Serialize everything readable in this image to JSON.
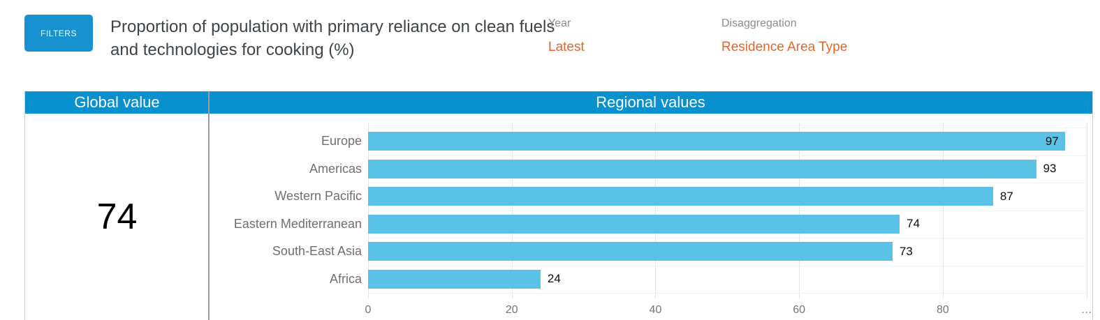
{
  "colors": {
    "header_blue": "#0991cf",
    "button_blue": "#1791cf",
    "bar_blue": "#5bc2e7",
    "accent_orange": "#e2662b"
  },
  "toolbar": {
    "filters_label": "FILTERS",
    "title": "Proportion of population with primary reliance on clean fuels and technologies for cooking (%)",
    "filters": [
      {
        "label": "Year",
        "value": "Latest"
      },
      {
        "label": "Disaggregation",
        "value": "Residence Area Type"
      }
    ]
  },
  "table": {
    "global_header": "Global value",
    "regional_header": "Regional values",
    "global_value": "74"
  },
  "chart_data": {
    "type": "bar",
    "orientation": "horizontal",
    "title": "Regional values",
    "categories": [
      "Europe",
      "Americas",
      "Western Pacific",
      "Eastern Mediterranean",
      "South-East Asia",
      "Africa"
    ],
    "values": [
      97,
      93,
      87,
      74,
      73,
      24
    ],
    "value_labels": [
      "97",
      "93",
      "87",
      "74",
      "73",
      "24"
    ],
    "xlim": [
      0,
      100
    ],
    "x_ticks": [
      0,
      20,
      40,
      60,
      80,
      100
    ],
    "x_tick_labels": [
      "0",
      "20",
      "40",
      "60",
      "80",
      "…"
    ],
    "xlabel": "",
    "ylabel": "",
    "grid": true,
    "legend": false,
    "bar_color": "#5bc2e7"
  }
}
